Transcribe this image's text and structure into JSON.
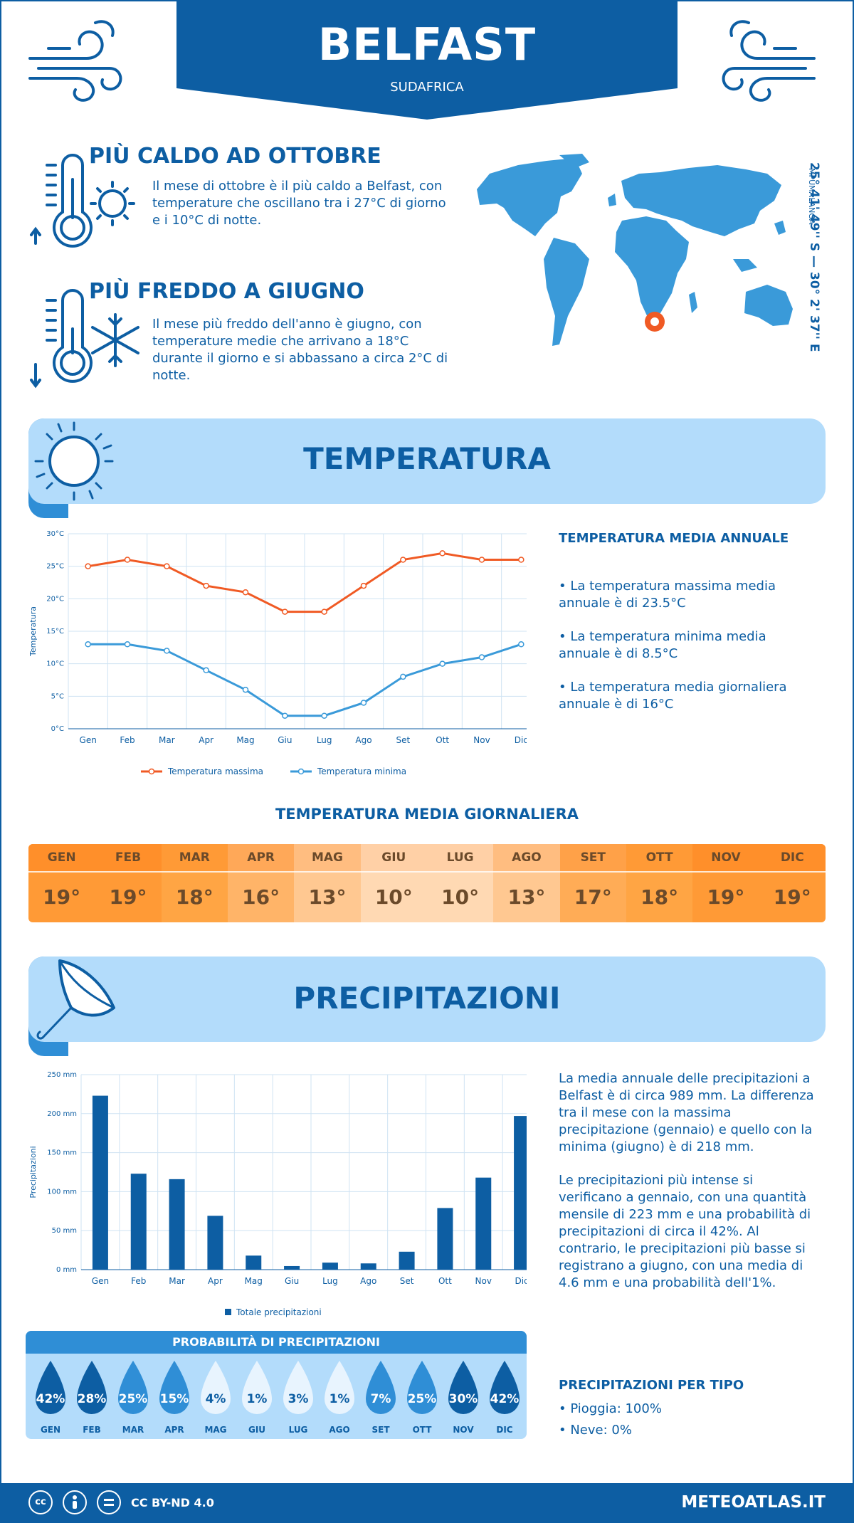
{
  "header": {
    "city": "BELFAST",
    "country": "SUDAFRICA"
  },
  "hot": {
    "title": "PIÙ CALDO AD OTTOBRE",
    "text": "Il mese di ottobre è il più caldo a Belfast, con temperature che oscillano tra i 27°C di giorno e i 10°C di notte."
  },
  "cold": {
    "title": "PIÙ FREDDO A GIUGNO",
    "text": "Il mese più freddo dell'anno è giugno, con temperature medie che arrivano a 18°C durante il giorno e si abbassano a circa 2°C di notte."
  },
  "location": {
    "coords": "25° 41' 49'' S — 30° 2' 37'' E",
    "region": "MPUMALANGA"
  },
  "temperature_section": {
    "title": "TEMPERATURA",
    "side_title": "TEMPERATURA MEDIA ANNUALE",
    "bullets": [
      "• La temperatura massima media annuale è di 23.5°C",
      "• La temperatura minima media annuale è di 8.5°C",
      "• La temperatura media giornaliera annuale è di 16°C"
    ]
  },
  "daily": {
    "title": "TEMPERATURA MEDIA GIORNALIERA",
    "months": [
      "GEN",
      "FEB",
      "MAR",
      "APR",
      "MAG",
      "GIU",
      "LUG",
      "AGO",
      "SET",
      "OTT",
      "NOV",
      "DIC"
    ],
    "values": [
      "19°",
      "19°",
      "18°",
      "16°",
      "13°",
      "10°",
      "10°",
      "13°",
      "17°",
      "18°",
      "19°",
      "19°"
    ],
    "colors": [
      "#ff9a36",
      "#ff9a36",
      "#ffa544",
      "#ffb468",
      "#ffc891",
      "#ffd9b3",
      "#ffd9b3",
      "#ffc891",
      "#ffac56",
      "#ffa544",
      "#ff9a36",
      "#ff9a36"
    ],
    "header_colors": [
      "#ff8f2a",
      "#ff8f2a",
      "#ff9a36",
      "#ffa858",
      "#ffbd80",
      "#ffd0a6",
      "#ffd0a6",
      "#ffbd80",
      "#ffa148",
      "#ff9a36",
      "#ff8f2a",
      "#ff8f2a"
    ]
  },
  "precip_section": {
    "title": "PRECIPITAZIONI",
    "text1": "La media annuale delle precipitazioni a Belfast è di circa 989 mm. La differenza tra il mese con la massima precipitazione (gennaio) e quello con la minima (giugno) è di 218 mm.",
    "text2": "Le precipitazioni più intense si verificano a gennaio, con una quantità mensile di 223 mm e una probabilità di precipitazioni di circa il 42%. Al contrario, le precipitazioni più basse si registrano a giugno, con una media di 4.6 mm e una probabilità dell'1%.",
    "type_title": "PRECIPITAZIONI PER TIPO",
    "types": [
      "• Pioggia: 100%",
      "• Neve: 0%"
    ]
  },
  "probability": {
    "title": "PROBABILITÀ DI PRECIPITAZIONI",
    "months": [
      "GEN",
      "FEB",
      "MAR",
      "APR",
      "MAG",
      "GIU",
      "LUG",
      "AGO",
      "SET",
      "OTT",
      "NOV",
      "DIC"
    ],
    "values": [
      "42%",
      "28%",
      "25%",
      "15%",
      "4%",
      "1%",
      "3%",
      "1%",
      "7%",
      "25%",
      "30%",
      "42%"
    ],
    "colors": [
      "#0d5ea3",
      "#0d5ea3",
      "#2f8ed6",
      "#2f8ed6",
      "#e8f4fe",
      "#e8f4fe",
      "#e8f4fe",
      "#e8f4fe",
      "#2f8ed6",
      "#2f8ed6",
      "#0d5ea3",
      "#0d5ea3"
    ]
  },
  "footer": {
    "license": "CC BY-ND 4.0",
    "brand": "METEOATLAS.IT"
  },
  "chart_data": [
    {
      "type": "line",
      "categories": [
        "Gen",
        "Feb",
        "Mar",
        "Apr",
        "Mag",
        "Giu",
        "Lug",
        "Ago",
        "Set",
        "Ott",
        "Nov",
        "Dic"
      ],
      "series": [
        {
          "name": "Temperatura massima",
          "values": [
            25,
            26,
            25,
            22,
            21,
            18,
            18,
            22,
            26,
            27,
            26,
            26
          ],
          "color": "#f05a24"
        },
        {
          "name": "Temperatura minima",
          "values": [
            13,
            13,
            12,
            9,
            6,
            2,
            2,
            4,
            8,
            10,
            11,
            13
          ],
          "color": "#3a9ad9"
        }
      ],
      "ylabel": "Temperatura",
      "yticks": [
        "0°C",
        "5°C",
        "10°C",
        "15°C",
        "20°C",
        "25°C",
        "30°C"
      ],
      "ylim": [
        0,
        30
      ],
      "grid": true,
      "legend": "bottom"
    },
    {
      "type": "bar",
      "categories": [
        "Gen",
        "Feb",
        "Mar",
        "Apr",
        "Mag",
        "Giu",
        "Lug",
        "Ago",
        "Set",
        "Ott",
        "Nov",
        "Dic"
      ],
      "series": [
        {
          "name": "Totale precipitazioni",
          "values": [
            223,
            123,
            116,
            69,
            18,
            4.6,
            9,
            8,
            23,
            79,
            118,
            197
          ],
          "color": "#0d5ea3"
        }
      ],
      "ylabel": "Precipitazioni",
      "yticks": [
        "0 mm",
        "50 mm",
        "100 mm",
        "150 mm",
        "200 mm",
        "250 mm"
      ],
      "ylim": [
        0,
        250
      ],
      "grid": true,
      "legend": "bottom"
    }
  ]
}
